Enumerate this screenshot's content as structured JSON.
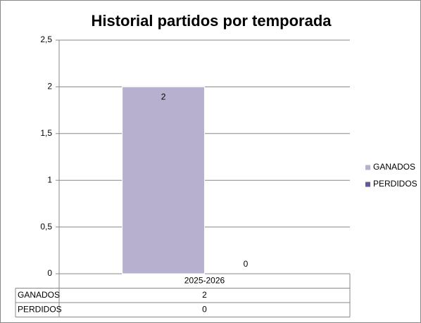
{
  "chart_data": {
    "type": "bar",
    "title": "Historial partidos por temporada",
    "categories": [
      "2025-2026"
    ],
    "series": [
      {
        "name": "GANADOS",
        "color": "#b8b0cf",
        "values": [
          2
        ]
      },
      {
        "name": "PERDIDOS",
        "color": "#65579a",
        "values": [
          0
        ]
      }
    ],
    "ylim": [
      0,
      2.5
    ],
    "yticks": [
      0,
      {
        "value": 0.5,
        "label": "0,5"
      },
      1,
      {
        "value": 1.5,
        "label": "1,5"
      },
      2,
      {
        "value": 2.5,
        "label": "2,5"
      }
    ],
    "grid": true,
    "legend": "right",
    "data_table": true
  }
}
